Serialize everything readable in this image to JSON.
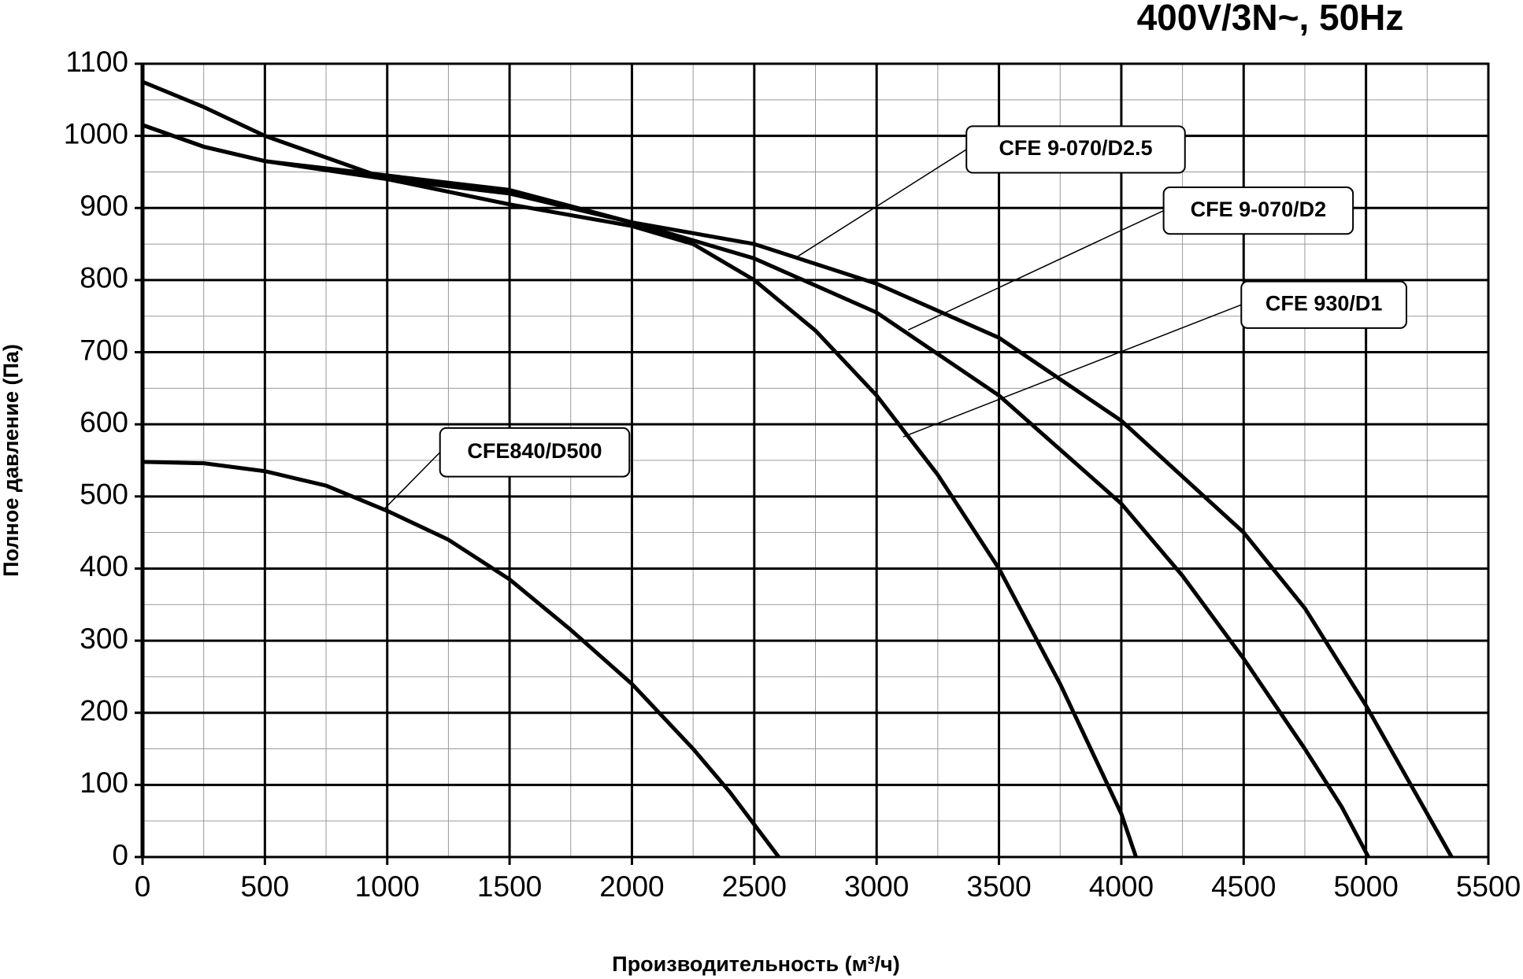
{
  "chart_data": {
    "type": "line",
    "title": "400V/3N~, 50Hz",
    "x_label": "Производительность (м³/ч)",
    "y_label": "Полное давление (Па)",
    "xlim": [
      0,
      5500
    ],
    "ylim": [
      0,
      1100
    ],
    "xticks": [
      0,
      500,
      1000,
      1500,
      2000,
      2500,
      3000,
      3500,
      4000,
      4500,
      5000,
      5500
    ],
    "yticks": [
      0,
      100,
      200,
      300,
      400,
      500,
      600,
      700,
      800,
      900,
      1000,
      1100
    ],
    "grid": true,
    "series": [
      {
        "name": "CFE840/D500",
        "color": "#000000",
        "x": [
          0,
          250,
          500,
          750,
          1000,
          1250,
          1500,
          1750,
          2000,
          2250,
          2400,
          2500,
          2600
        ],
        "values": [
          548,
          546,
          535,
          515,
          480,
          440,
          385,
          315,
          240,
          150,
          90,
          45,
          0
        ]
      },
      {
        "name": "CFE 930/D1",
        "color": "#000000",
        "x": [
          0,
          250,
          500,
          1000,
          1500,
          2000,
          2250,
          2500,
          2750,
          3000,
          3250,
          3500,
          3750,
          4000,
          4060
        ],
        "values": [
          1075,
          1040,
          1000,
          940,
          905,
          875,
          850,
          800,
          730,
          640,
          530,
          400,
          240,
          60,
          0
        ]
      },
      {
        "name": "CFE 9-070/D2",
        "color": "#000000",
        "x": [
          0,
          250,
          500,
          1000,
          1500,
          2000,
          2500,
          3000,
          3500,
          4000,
          4250,
          4500,
          4750,
          4900,
          5010
        ],
        "values": [
          1015,
          985,
          965,
          940,
          920,
          880,
          830,
          755,
          640,
          490,
          390,
          275,
          150,
          70,
          0
        ]
      },
      {
        "name": "CFE 9-070/D2.5",
        "color": "#000000",
        "x": [
          0,
          250,
          500,
          1000,
          1500,
          2000,
          2500,
          3000,
          3500,
          4000,
          4500,
          4750,
          5000,
          5250,
          5350
        ],
        "values": [
          1015,
          985,
          965,
          945,
          925,
          880,
          850,
          795,
          720,
          605,
          450,
          345,
          210,
          60,
          0
        ]
      }
    ]
  }
}
